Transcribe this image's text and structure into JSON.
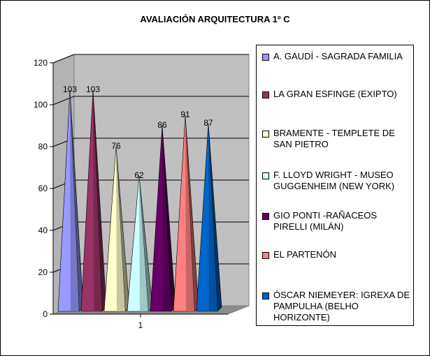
{
  "chart_data": {
    "type": "3d-cone-column",
    "title": "AVALIACIÓN ARQUITECTURA 1º C",
    "categories": [
      "1"
    ],
    "ylim": [
      0,
      120
    ],
    "yticks": [
      "0",
      "20",
      "40",
      "60",
      "80",
      "100",
      "120"
    ],
    "grid": true,
    "legend_position": "right",
    "series": [
      {
        "name": "A. GAUDÍ - SAGRADA FAMILIA",
        "values": [
          103
        ],
        "color": "#9999ff"
      },
      {
        "name": "LA GRAN ESFINGE (EXIPTO)",
        "values": [
          103
        ],
        "color": "#993366"
      },
      {
        "name": "BRAMENTE - TEMPLETE DE SAN PIETRO",
        "values": [
          76
        ],
        "color": "#ffffcc"
      },
      {
        "name": "F. LLOYD WRIGHT - MUSEO GUGGENHEIM (NEW YORK)",
        "values": [
          62
        ],
        "color": "#ccffff"
      },
      {
        "name": "GIO PONTI -RAÑACEOS PIRELLI (MILÁN)",
        "values": [
          86
        ],
        "color": "#660066"
      },
      {
        "name": "EL PARTENÓN",
        "values": [
          91
        ],
        "color": "#ff8080"
      },
      {
        "name": "ÓSCAR NIEMEYER: IGREXA DE PAMPULHA (BELHO HORIZONTE)",
        "values": [
          87
        ],
        "color": "#0066cc"
      }
    ]
  }
}
